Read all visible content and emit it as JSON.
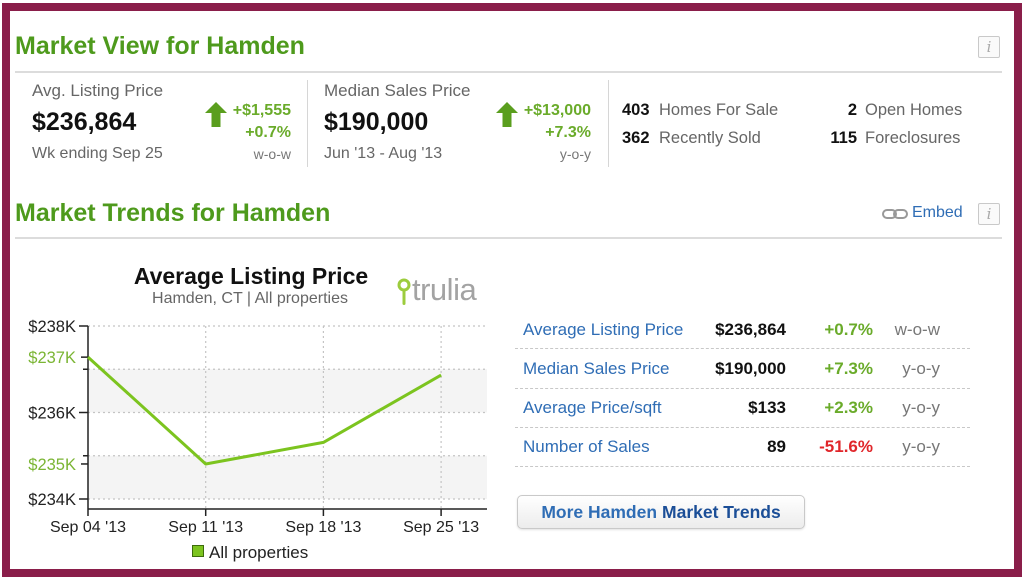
{
  "colors": {
    "frame_border": "#8a1e4a",
    "title_green": "#4e9a1c",
    "link_blue": "#2f6db5",
    "positive": "#6aab2a",
    "negative": "#e0262a",
    "series_line": "#7cc41f"
  },
  "market_view": {
    "title": "Market View for Hamden",
    "info_icon": "i",
    "avg_listing_price": {
      "label": "Avg. Listing Price",
      "value": "$236,864",
      "period": "Wk ending Sep 25",
      "change_amount": "+$1,555",
      "change_percent": "+0.7%",
      "change_basis": "w-o-w",
      "trend_icon": "arrow-up-icon"
    },
    "median_sales_price": {
      "label": "Median Sales Price",
      "value": "$190,000",
      "period": "Jun '13 - Aug '13",
      "change_amount": "+$13,000",
      "change_percent": "+7.3%",
      "change_basis": "y-o-y",
      "trend_icon": "arrow-up-icon"
    },
    "counts": [
      {
        "count": "403",
        "label": "Homes For Sale"
      },
      {
        "count": "362",
        "label": "Recently Sold"
      },
      {
        "count": "2",
        "label": "Open Homes"
      },
      {
        "count": "115",
        "label": "Foreclosures"
      }
    ]
  },
  "market_trends": {
    "title": "Market Trends for Hamden",
    "embed_label": "Embed",
    "embed_icon": "link-icon",
    "info_icon": "i",
    "brand_logo": "trulia",
    "legend_label": "All properties",
    "stats_table": {
      "rows": [
        {
          "label": "Average Listing Price",
          "value": "$236,864",
          "change": "+0.7%",
          "basis": "w-o-w",
          "direction": "positive"
        },
        {
          "label": "Median Sales Price",
          "value": "$190,000",
          "change": "+7.3%",
          "basis": "y-o-y",
          "direction": "positive"
        },
        {
          "label": "Average Price/sqft",
          "value": "$133",
          "change": "+2.3%",
          "basis": "y-o-y",
          "direction": "positive"
        },
        {
          "label": "Number of Sales",
          "value": "89",
          "change": "-51.6%",
          "basis": "y-o-y",
          "direction": "negative"
        }
      ]
    },
    "more_button": {
      "prefix": "More Hamden",
      "emphasis": "Market Trends"
    }
  },
  "chart_data": {
    "type": "line",
    "title": "Average Listing Price",
    "subtitle": "Hamden, CT | All properties",
    "xlabel": "",
    "ylabel": "",
    "x": [
      "Sep 04 '13",
      "Sep 11 '13",
      "Sep 18 '13",
      "Sep 25 '13"
    ],
    "series": [
      {
        "name": "All properties",
        "values": [
          237280,
          234810,
          235309,
          236864
        ],
        "color": "#7cc41f"
      }
    ],
    "ylim": [
      234000,
      238000
    ],
    "yticks": [
      {
        "value": 238000,
        "label": "$238K"
      },
      {
        "value": 236000,
        "label": "$236K"
      },
      {
        "value": 234000,
        "label": "$234K"
      }
    ],
    "minor_yticks": [
      237000,
      235000
    ],
    "range_markers": [
      {
        "at": "max",
        "label": "$237K"
      },
      {
        "at": "min",
        "label": "$235K"
      }
    ],
    "grid": true,
    "legend_position": "bottom"
  }
}
